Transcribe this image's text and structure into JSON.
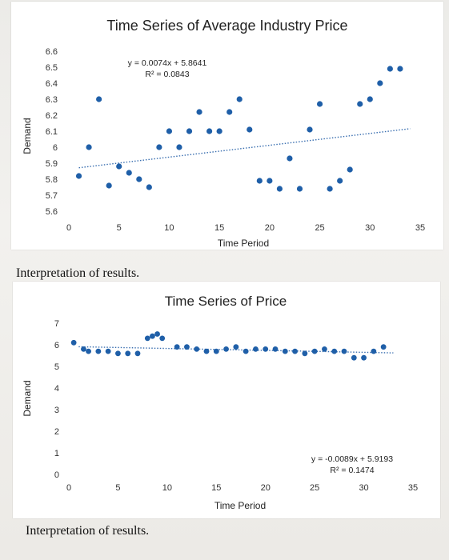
{
  "chart_data": [
    {
      "type": "scatter",
      "title": "Time Series of Average Industry Price",
      "xlabel": "Time Period",
      "ylabel": "Demand",
      "xlim": [
        0,
        35
      ],
      "ylim": [
        5.6,
        6.6
      ],
      "x_ticks": [
        "0",
        "5",
        "10",
        "15",
        "20",
        "25",
        "30",
        "35"
      ],
      "y_ticks": [
        "5.6",
        "5.7",
        "5.8",
        "5.9",
        "6",
        "6.1",
        "6.2",
        "6.3",
        "6.4",
        "6.5",
        "6.6"
      ],
      "grid": false,
      "marker_color": "#1f5fa8",
      "trendline": {
        "type": "linear",
        "style": "dotted",
        "slope": 0.0074,
        "intercept": 5.8641
      },
      "equation_label": "y = 0.0074x + 5.8641",
      "r2_label": "R² = 0.0843",
      "series": [
        {
          "x": [
            1,
            2,
            3,
            4,
            5,
            6,
            7,
            8,
            9,
            10,
            11,
            12,
            13,
            14,
            15,
            16,
            17,
            18,
            19,
            20,
            21,
            22,
            23,
            24,
            25,
            26,
            27,
            28,
            29,
            30,
            31,
            32,
            33
          ],
          "y": [
            5.82,
            6.0,
            6.3,
            5.76,
            5.88,
            5.84,
            5.8,
            5.75,
            6.0,
            6.1,
            6.0,
            6.1,
            6.22,
            6.1,
            6.1,
            6.22,
            6.3,
            6.11,
            5.79,
            5.79,
            5.74,
            5.93,
            5.74,
            6.11,
            6.27,
            5.74,
            5.79,
            5.86,
            6.27,
            6.3,
            6.4,
            6.49,
            6.49
          ]
        }
      ]
    },
    {
      "type": "scatter",
      "title": "Time Series of Price",
      "xlabel": "Time Period",
      "ylabel": "Demand",
      "xlim": [
        0,
        35
      ],
      "ylim": [
        0,
        7
      ],
      "x_ticks": [
        "0",
        "5",
        "10",
        "15",
        "20",
        "25",
        "30",
        "35"
      ],
      "y_ticks": [
        "0",
        "1",
        "2",
        "3",
        "4",
        "5",
        "6",
        "7"
      ],
      "grid": false,
      "marker_color": "#1f5fa8",
      "trendline": {
        "type": "linear",
        "style": "dotted",
        "slope": -0.0089,
        "intercept": 5.9193
      },
      "equation_label": "y = -0.0089x + 5.9193",
      "r2_label": "R² = 0.1474",
      "series": [
        {
          "x": [
            0.5,
            1.5,
            2,
            3,
            4,
            5,
            6,
            7,
            8,
            8.5,
            9,
            9.5,
            11,
            12,
            13,
            14,
            15,
            16,
            17,
            18,
            19,
            20,
            21,
            22,
            23,
            24,
            25,
            26,
            27,
            28,
            29,
            30,
            31,
            32
          ],
          "y": [
            6.1,
            5.8,
            5.7,
            5.7,
            5.7,
            5.6,
            5.6,
            5.6,
            6.3,
            6.4,
            6.5,
            6.3,
            5.9,
            5.9,
            5.8,
            5.7,
            5.7,
            5.8,
            5.9,
            5.7,
            5.8,
            5.8,
            5.8,
            5.7,
            5.7,
            5.6,
            5.7,
            5.8,
            5.7,
            5.7,
            5.4,
            5.4,
            5.7,
            5.9
          ]
        }
      ]
    }
  ],
  "captions": {
    "first": "Interpretation of results.",
    "second": "Interpretation of results."
  }
}
